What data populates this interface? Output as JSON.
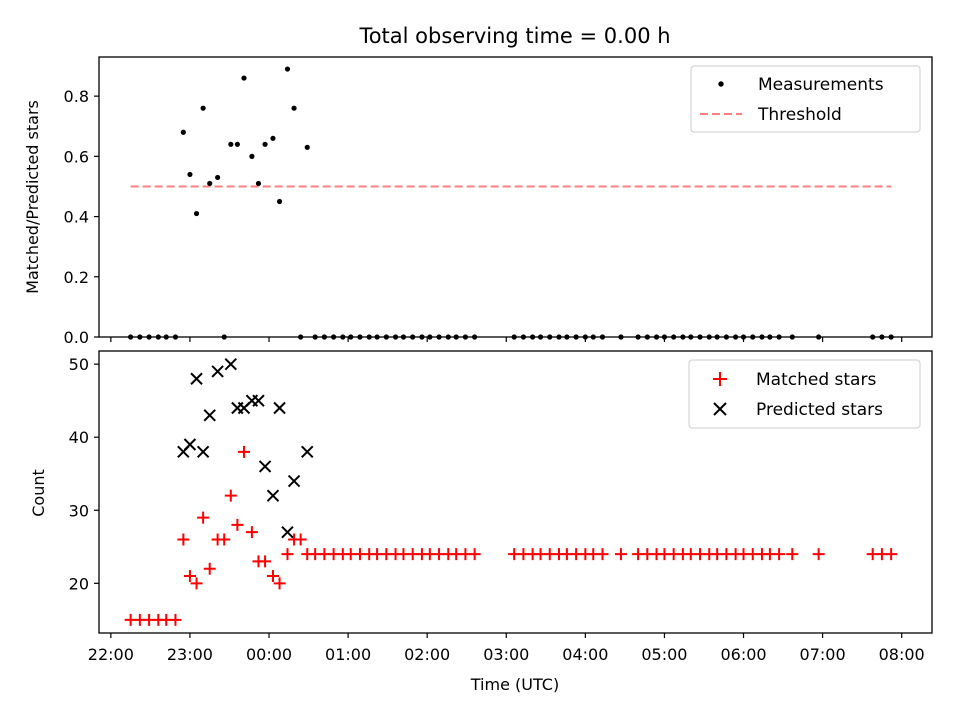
{
  "title": "Total observing time = 0.00 h",
  "colors": {
    "measurement": "#000000",
    "threshold": "#ff7f7f",
    "matched": "#ff0000",
    "predicted": "#000000"
  },
  "chart_data": [
    {
      "type": "scatter",
      "ylabel": "Matched/Predicted stars",
      "ylim": [
        0,
        0.93
      ],
      "yticks": [
        "0.0",
        "0.2",
        "0.4",
        "0.6",
        "0.8"
      ],
      "xlim": [
        "21:51",
        "08:23"
      ],
      "legend": [
        "Measurements",
        "Threshold"
      ],
      "legend_position": "top-right",
      "threshold": {
        "value": 0.5,
        "x_start": "22:15",
        "x_end": "07:52"
      },
      "series": [
        {
          "name": "Measurements",
          "points": [
            [
              "22:15",
              0.0
            ],
            [
              "22:22",
              0.0
            ],
            [
              "22:29",
              0.0
            ],
            [
              "22:36",
              0.0
            ],
            [
              "22:42",
              0.0
            ],
            [
              "22:49",
              0.0
            ],
            [
              "22:55",
              0.68
            ],
            [
              "23:00",
              0.54
            ],
            [
              "23:05",
              0.41
            ],
            [
              "23:10",
              0.76
            ],
            [
              "23:15",
              0.51
            ],
            [
              "23:21",
              0.53
            ],
            [
              "23:26",
              0.0
            ],
            [
              "23:31",
              0.64
            ],
            [
              "23:36",
              0.64
            ],
            [
              "23:41",
              0.86
            ],
            [
              "23:47",
              0.6
            ],
            [
              "23:52",
              0.51
            ],
            [
              "23:57",
              0.64
            ],
            [
              "00:03",
              0.66
            ],
            [
              "00:08",
              0.45
            ],
            [
              "00:14",
              0.89
            ],
            [
              "00:19",
              0.76
            ],
            [
              "00:24",
              0.0
            ],
            [
              "00:29",
              0.63
            ],
            [
              "00:35",
              0.0
            ],
            [
              "00:42",
              0.0
            ],
            [
              "00:49",
              0.0
            ],
            [
              "00:56",
              0.0
            ],
            [
              "01:02",
              0.0
            ],
            [
              "01:09",
              0.0
            ],
            [
              "01:16",
              0.0
            ],
            [
              "01:22",
              0.0
            ],
            [
              "01:29",
              0.0
            ],
            [
              "01:36",
              0.0
            ],
            [
              "01:42",
              0.0
            ],
            [
              "01:49",
              0.0
            ],
            [
              "01:56",
              0.0
            ],
            [
              "02:02",
              0.0
            ],
            [
              "02:09",
              0.0
            ],
            [
              "02:16",
              0.0
            ],
            [
              "02:22",
              0.0
            ],
            [
              "02:29",
              0.0
            ],
            [
              "02:36",
              0.0
            ],
            [
              "03:06",
              0.0
            ],
            [
              "03:13",
              0.0
            ],
            [
              "03:20",
              0.0
            ],
            [
              "03:26",
              0.0
            ],
            [
              "03:33",
              0.0
            ],
            [
              "03:40",
              0.0
            ],
            [
              "03:46",
              0.0
            ],
            [
              "03:53",
              0.0
            ],
            [
              "04:00",
              0.0
            ],
            [
              "04:06",
              0.0
            ],
            [
              "04:13",
              0.0
            ],
            [
              "04:27",
              0.0
            ],
            [
              "04:40",
              0.0
            ],
            [
              "04:47",
              0.0
            ],
            [
              "04:54",
              0.0
            ],
            [
              "05:00",
              0.0
            ],
            [
              "05:07",
              0.0
            ],
            [
              "05:14",
              0.0
            ],
            [
              "05:20",
              0.0
            ],
            [
              "05:27",
              0.0
            ],
            [
              "05:34",
              0.0
            ],
            [
              "05:40",
              0.0
            ],
            [
              "05:47",
              0.0
            ],
            [
              "05:54",
              0.0
            ],
            [
              "06:00",
              0.0
            ],
            [
              "06:07",
              0.0
            ],
            [
              "06:14",
              0.0
            ],
            [
              "06:20",
              0.0
            ],
            [
              "06:27",
              0.0
            ],
            [
              "06:37",
              0.0
            ],
            [
              "06:57",
              0.0
            ],
            [
              "07:38",
              0.0
            ],
            [
              "07:45",
              0.0
            ],
            [
              "07:52",
              0.0
            ]
          ]
        }
      ]
    },
    {
      "type": "scatter",
      "xlabel": "Time (UTC)",
      "ylabel": "Count",
      "ylim": [
        13.2,
        51.8
      ],
      "yticks": [
        "20",
        "30",
        "40",
        "50"
      ],
      "xlim": [
        "21:51",
        "08:23"
      ],
      "xticks": [
        "22:00",
        "23:00",
        "00:00",
        "01:00",
        "02:00",
        "03:00",
        "04:00",
        "05:00",
        "06:00",
        "07:00",
        "08:00"
      ],
      "legend": [
        "Matched stars",
        "Predicted stars"
      ],
      "legend_position": "top-right",
      "series": [
        {
          "name": "Matched stars",
          "marker": "+",
          "points": [
            [
              "22:15",
              15
            ],
            [
              "22:22",
              15
            ],
            [
              "22:29",
              15
            ],
            [
              "22:36",
              15
            ],
            [
              "22:42",
              15
            ],
            [
              "22:49",
              15
            ],
            [
              "22:55",
              26
            ],
            [
              "23:00",
              21
            ],
            [
              "23:05",
              20
            ],
            [
              "23:10",
              29
            ],
            [
              "23:15",
              22
            ],
            [
              "23:21",
              26
            ],
            [
              "23:26",
              26
            ],
            [
              "23:31",
              32
            ],
            [
              "23:36",
              28
            ],
            [
              "23:41",
              38
            ],
            [
              "23:47",
              27
            ],
            [
              "23:52",
              23
            ],
            [
              "23:57",
              23
            ],
            [
              "00:03",
              21
            ],
            [
              "00:08",
              20
            ],
            [
              "00:14",
              24
            ],
            [
              "00:19",
              26
            ],
            [
              "00:24",
              26
            ],
            [
              "00:29",
              24
            ],
            [
              "00:35",
              24
            ],
            [
              "00:42",
              24
            ],
            [
              "00:49",
              24
            ],
            [
              "00:56",
              24
            ],
            [
              "01:02",
              24
            ],
            [
              "01:09",
              24
            ],
            [
              "01:16",
              24
            ],
            [
              "01:22",
              24
            ],
            [
              "01:29",
              24
            ],
            [
              "01:36",
              24
            ],
            [
              "01:42",
              24
            ],
            [
              "01:49",
              24
            ],
            [
              "01:56",
              24
            ],
            [
              "02:02",
              24
            ],
            [
              "02:09",
              24
            ],
            [
              "02:16",
              24
            ],
            [
              "02:22",
              24
            ],
            [
              "02:29",
              24
            ],
            [
              "02:36",
              24
            ],
            [
              "03:06",
              24
            ],
            [
              "03:13",
              24
            ],
            [
              "03:20",
              24
            ],
            [
              "03:26",
              24
            ],
            [
              "03:33",
              24
            ],
            [
              "03:40",
              24
            ],
            [
              "03:46",
              24
            ],
            [
              "03:53",
              24
            ],
            [
              "04:00",
              24
            ],
            [
              "04:06",
              24
            ],
            [
              "04:13",
              24
            ],
            [
              "04:27",
              24
            ],
            [
              "04:40",
              24
            ],
            [
              "04:47",
              24
            ],
            [
              "04:54",
              24
            ],
            [
              "05:00",
              24
            ],
            [
              "05:07",
              24
            ],
            [
              "05:14",
              24
            ],
            [
              "05:20",
              24
            ],
            [
              "05:27",
              24
            ],
            [
              "05:34",
              24
            ],
            [
              "05:40",
              24
            ],
            [
              "05:47",
              24
            ],
            [
              "05:54",
              24
            ],
            [
              "06:00",
              24
            ],
            [
              "06:07",
              24
            ],
            [
              "06:14",
              24
            ],
            [
              "06:20",
              24
            ],
            [
              "06:27",
              24
            ],
            [
              "06:37",
              24
            ],
            [
              "06:57",
              24
            ],
            [
              "07:38",
              24
            ],
            [
              "07:45",
              24
            ],
            [
              "07:52",
              24
            ]
          ]
        },
        {
          "name": "Predicted stars",
          "marker": "x",
          "points": [
            [
              "22:55",
              38
            ],
            [
              "23:00",
              39
            ],
            [
              "23:05",
              48
            ],
            [
              "23:10",
              38
            ],
            [
              "23:15",
              43
            ],
            [
              "23:21",
              49
            ],
            [
              "23:31",
              50
            ],
            [
              "23:36",
              44
            ],
            [
              "23:41",
              44
            ],
            [
              "23:47",
              45
            ],
            [
              "23:52",
              45
            ],
            [
              "23:57",
              36
            ],
            [
              "00:03",
              32
            ],
            [
              "00:08",
              44
            ],
            [
              "00:14",
              27
            ],
            [
              "00:19",
              34
            ],
            [
              "00:29",
              38
            ]
          ]
        }
      ]
    }
  ]
}
